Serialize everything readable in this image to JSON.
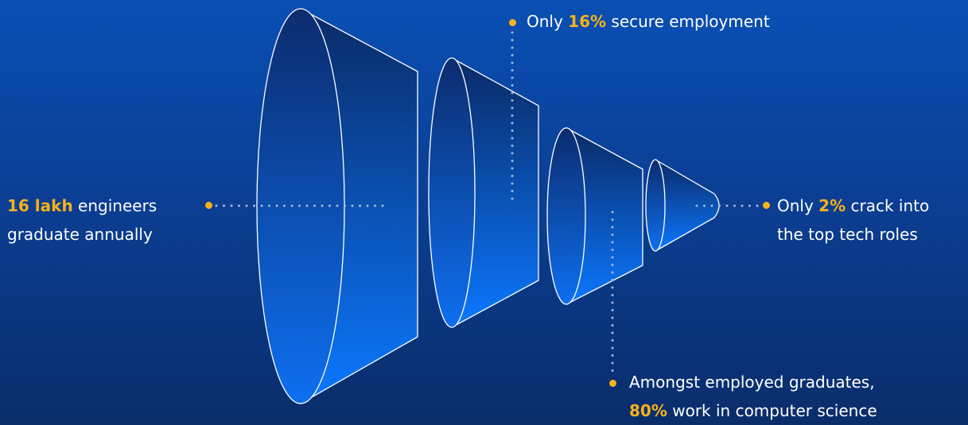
{
  "colors": {
    "highlight": "#f5b21b",
    "text": "#ffffff",
    "connector": "#a9b7d6",
    "stage_outline": "#ffffff"
  },
  "stages": [
    {
      "line1_highlight": "16 lakh",
      "line1_rest": " engineers",
      "line2": "graduate annually"
    },
    {
      "line1_pre": "Only ",
      "line1_highlight": "16%",
      "line1_rest": " secure employment"
    },
    {
      "line1": "Amongst employed graduates,",
      "line2_highlight": "80%",
      "line2_rest": " work in computer science"
    },
    {
      "line1_pre": "Only ",
      "line1_highlight": "2%",
      "line1_rest": " crack into",
      "line2": "the top tech roles"
    }
  ]
}
